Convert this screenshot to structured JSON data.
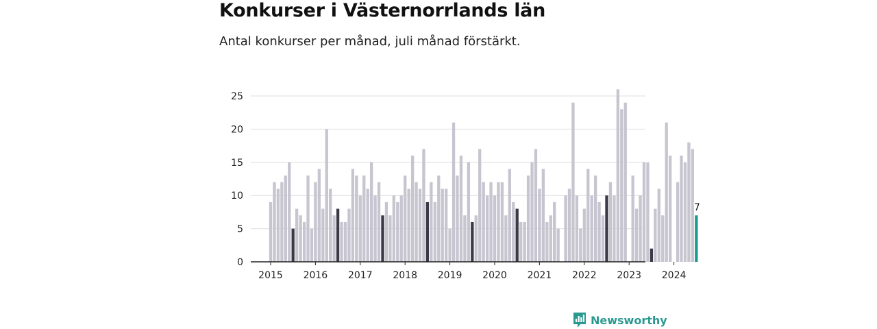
{
  "header": {
    "title": "Konkurser i Västernorrlands län",
    "subtitle": "Antal konkurser per månad, juli månad förstärkt."
  },
  "brand": {
    "name": "Newsworthy",
    "icon": "newsworthy-logo-icon"
  },
  "colors": {
    "bar": "#c6c5d0",
    "highlight": "#3a3945",
    "latest": "#1a9a8f",
    "grid": "#dedede",
    "axis": "#222222"
  },
  "chart_data": {
    "type": "bar",
    "title": "Konkurser i Västernorrlands län",
    "subtitle": "Antal konkurser per månad, juli månad förstärkt.",
    "xlabel": "",
    "ylabel": "",
    "ylim": [
      0,
      26
    ],
    "yticks": [
      0,
      5,
      10,
      15,
      20,
      25
    ],
    "xticks": [
      "2015",
      "2016",
      "2017",
      "2018",
      "2019",
      "2020",
      "2021",
      "2022",
      "2023",
      "2024"
    ],
    "start": "2015-01",
    "frequency": "monthly",
    "highlight": "July of each year",
    "values": [
      9,
      12,
      11,
      12,
      13,
      15,
      5,
      8,
      7,
      6,
      13,
      5,
      12,
      14,
      8,
      20,
      11,
      7,
      8,
      6,
      6,
      8,
      14,
      13,
      10,
      13,
      11,
      15,
      10,
      12,
      7,
      9,
      7,
      10,
      9,
      10,
      13,
      11,
      16,
      12,
      11,
      17,
      9,
      12,
      9,
      13,
      11,
      11,
      5,
      21,
      13,
      16,
      7,
      15,
      6,
      7,
      17,
      12,
      10,
      12,
      10,
      12,
      12,
      7,
      14,
      9,
      8,
      6,
      6,
      13,
      15,
      17,
      11,
      14,
      6,
      7,
      9,
      5,
      0,
      10,
      11,
      24,
      10,
      5,
      8,
      14,
      10,
      13,
      9,
      7,
      10,
      12,
      10,
      26,
      23,
      24,
      0,
      13,
      8,
      10,
      15,
      15,
      2,
      8,
      11,
      7,
      21,
      16,
      0,
      12,
      16,
      15,
      18,
      17,
      7
    ],
    "data_labels": [
      {
        "category": "2024-07",
        "value": 7,
        "label": "7"
      }
    ]
  }
}
